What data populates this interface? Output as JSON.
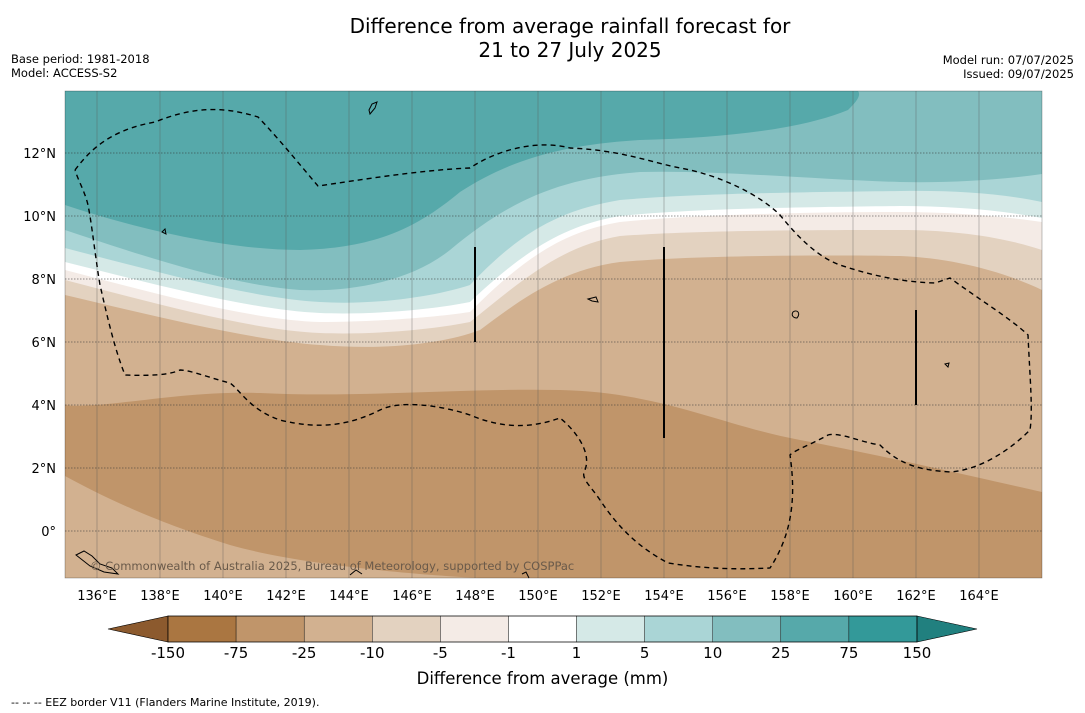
{
  "title": {
    "line1": "Difference from average rainfall forecast for",
    "line2": "21 to 27 July 2025"
  },
  "meta": {
    "base_period": "Base period: 1981-2018",
    "model": "Model: ACCESS-S2",
    "model_run": "Model run: 07/07/2025",
    "issued": "Issued: 09/07/2025"
  },
  "map": {
    "lat_labels": [
      "12°N",
      "10°N",
      "8°N",
      "6°N",
      "4°N",
      "2°N",
      "0°"
    ],
    "lon_labels": [
      "136°E",
      "138°E",
      "140°E",
      "142°E",
      "144°E",
      "146°E",
      "148°E",
      "150°E",
      "152°E",
      "154°E",
      "156°E",
      "158°E",
      "160°E",
      "162°E",
      "164°E"
    ],
    "copyright": "© Commonwealth of Australia 2025, Bureau of Meteorology, supported by COSPPac"
  },
  "colorbar": {
    "title": "Difference from average (mm)",
    "tick_labels": [
      "-150",
      "-75",
      "-25",
      "-10",
      "-5",
      "-1",
      "1",
      "5",
      "10",
      "25",
      "75",
      "150"
    ],
    "colors": [
      "#aa7641",
      "#c0956a",
      "#d2b190",
      "#e3d2c0",
      "#f4ebe6",
      "#ffffff",
      "#d5e9e7",
      "#aad5d6",
      "#82bebf",
      "#56a9aa",
      "#339999"
    ],
    "extend_low_color": "#8c5a2e",
    "extend_high_color": "#21807f"
  },
  "footnote": "-- -- -- EEZ border V11 (Flanders Marine Institute, 2019)."
}
